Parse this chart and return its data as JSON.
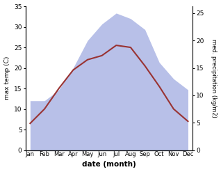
{
  "months": [
    "Jan",
    "Feb",
    "Mar",
    "Apr",
    "May",
    "Jun",
    "Jul",
    "Aug",
    "Sep",
    "Oct",
    "Nov",
    "Dec"
  ],
  "temperature": [
    6.5,
    10.0,
    15.0,
    19.5,
    22.0,
    23.0,
    25.5,
    25.0,
    20.5,
    15.5,
    10.0,
    7.0
  ],
  "precipitation": [
    9,
    9,
    11,
    15,
    20,
    23,
    25,
    24,
    22,
    16,
    13,
    11
  ],
  "temp_color": "#993333",
  "precip_fill_color": "#b8c0e8",
  "temp_ylim": [
    0,
    35
  ],
  "precip_ylim": [
    0,
    26.25
  ],
  "temp_yticks": [
    0,
    5,
    10,
    15,
    20,
    25,
    30,
    35
  ],
  "precip_yticks": [
    0,
    5,
    10,
    15,
    20,
    25
  ],
  "xlabel": "date (month)",
  "ylabel_left": "max temp (C)",
  "ylabel_right": "med. precipitation (kg/m2)",
  "bg_color": "#ffffff",
  "figure_width": 3.18,
  "figure_height": 2.47,
  "dpi": 100
}
